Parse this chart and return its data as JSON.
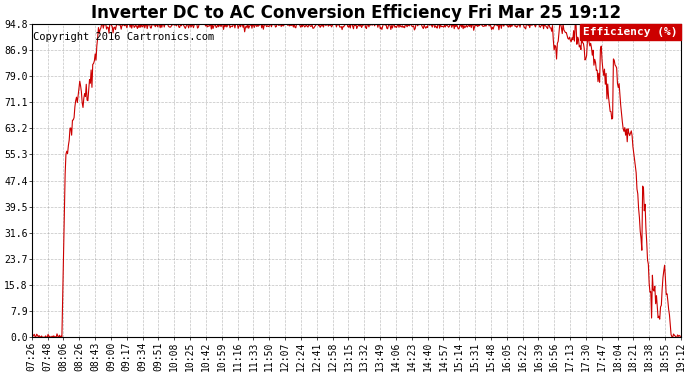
{
  "title": "Inverter DC to AC Conversion Efficiency Fri Mar 25 19:12",
  "copyright": "Copyright 2016 Cartronics.com",
  "legend_label": "Efficiency (%)",
  "ylabel_ticks": [
    0.0,
    7.9,
    15.8,
    23.7,
    31.6,
    39.5,
    47.4,
    55.3,
    63.2,
    71.1,
    79.0,
    86.9,
    94.8
  ],
  "ymin": 0.0,
  "ymax": 94.8,
  "bg_color": "#ffffff",
  "plot_bg_color": "#ffffff",
  "grid_color": "#999999",
  "line_color": "#cc0000",
  "title_fontsize": 12,
  "tick_fontsize": 7,
  "copyright_fontsize": 7.5,
  "legend_fontsize": 8,
  "xtick_labels": [
    "07:26",
    "07:48",
    "08:06",
    "08:26",
    "08:43",
    "09:00",
    "09:17",
    "09:34",
    "09:51",
    "10:08",
    "10:25",
    "10:42",
    "10:59",
    "11:16",
    "11:33",
    "11:50",
    "12:07",
    "12:24",
    "12:41",
    "12:58",
    "13:15",
    "13:32",
    "13:49",
    "14:06",
    "14:23",
    "14:40",
    "14:57",
    "15:14",
    "15:31",
    "15:48",
    "16:05",
    "16:22",
    "16:39",
    "16:56",
    "17:13",
    "17:30",
    "17:47",
    "18:04",
    "18:21",
    "18:38",
    "18:55",
    "19:12"
  ],
  "num_points": 800,
  "legend_bg": "#cc0000",
  "legend_fg": "#ffffff"
}
